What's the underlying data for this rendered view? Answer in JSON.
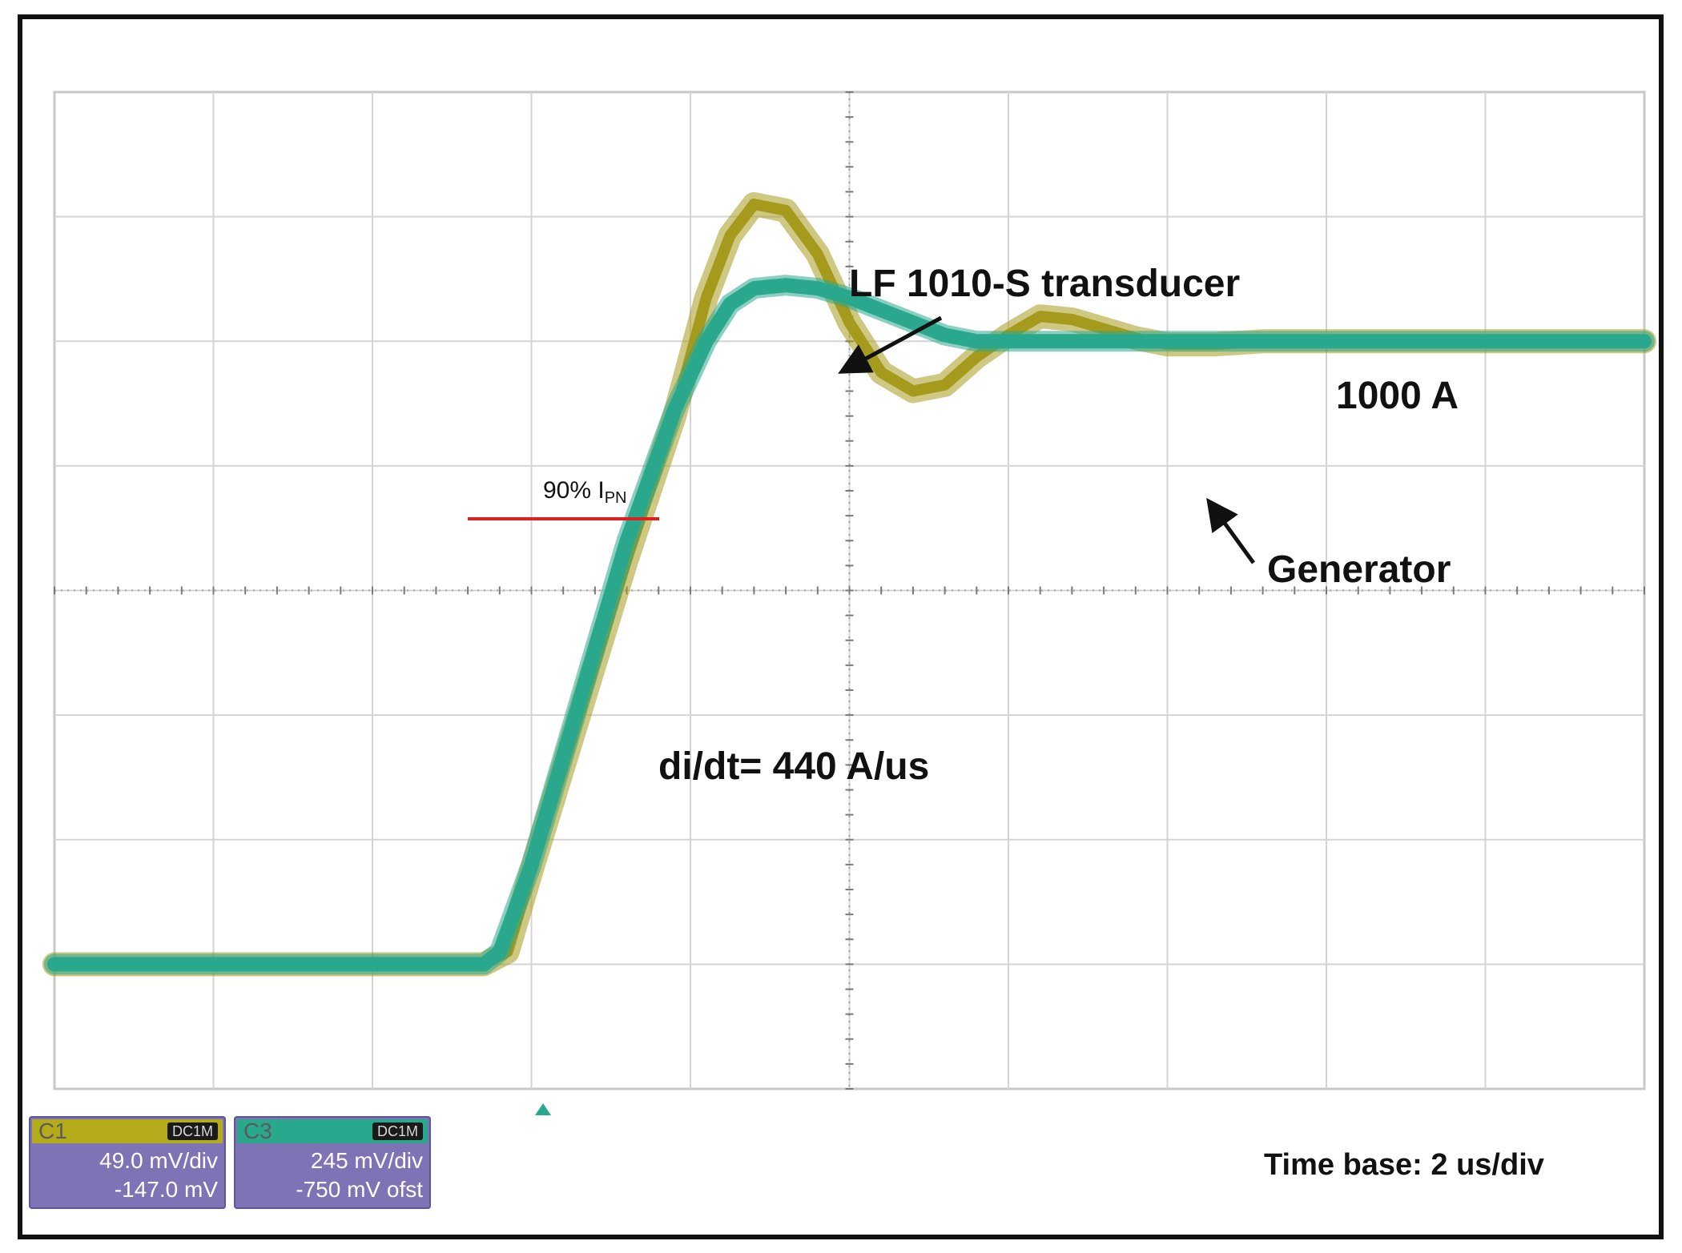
{
  "chart_data": {
    "type": "line",
    "grid": "on",
    "divisions": {
      "x": 10,
      "y": 8
    },
    "x_unit": "div",
    "y_unit": "A",
    "ylim": [
      -200,
      1400
    ],
    "xlim": [
      0,
      10
    ],
    "series": [
      {
        "name": "LF 1010-S transducer",
        "color": "#a69a1c",
        "x": [
          0,
          1,
          2,
          2.7,
          2.85,
          3.0,
          3.3,
          3.6,
          3.9,
          4.1,
          4.25,
          4.4,
          4.6,
          4.8,
          5.0,
          5.2,
          5.4,
          5.6,
          5.8,
          6.0,
          6.2,
          6.4,
          6.6,
          6.8,
          7.0,
          7.3,
          7.6,
          8.0,
          9.0,
          10.0
        ],
        "values": [
          0,
          0,
          0,
          0,
          20,
          150,
          400,
          650,
          880,
          1070,
          1170,
          1220,
          1210,
          1140,
          1030,
          950,
          920,
          930,
          975,
          1010,
          1040,
          1035,
          1020,
          1005,
          995,
          995,
          1000,
          1000,
          1000,
          1000
        ]
      },
      {
        "name": "Generator",
        "color": "#2aa88e",
        "x": [
          0,
          1,
          2,
          2.7,
          2.8,
          3.0,
          3.3,
          3.6,
          3.9,
          4.1,
          4.25,
          4.4,
          4.6,
          4.8,
          5.0,
          5.2,
          5.4,
          5.6,
          5.8,
          6.0,
          6.5,
          7.0,
          8.0,
          9.0,
          10.0
        ],
        "values": [
          0,
          0,
          0,
          0,
          20,
          160,
          420,
          680,
          890,
          1000,
          1060,
          1085,
          1090,
          1085,
          1070,
          1050,
          1030,
          1010,
          1000,
          1000,
          1000,
          1000,
          1000,
          1000,
          1000
        ]
      }
    ],
    "annotations": {
      "transducer_label": "LF 1010-S transducer",
      "level_label": "1000 A",
      "generator_label": "Generator",
      "threshold_label_main": "90% I",
      "threshold_label_sub": "PN",
      "threshold_value": 900,
      "slope_label": "di/dt= 440 A/us",
      "timebase_label": "Time base: 2 us/div"
    },
    "threshold_color": "#e02020"
  },
  "channels": [
    {
      "name": "C1",
      "tag": "DC1M",
      "scale": "49.0 mV/div",
      "offset": "-147.0 mV",
      "color": "#b3ab1a"
    },
    {
      "name": "C3",
      "tag": "DC1M",
      "scale": "245 mV/div",
      "offset": "-750 mV ofst",
      "color": "#2aa88e"
    }
  ]
}
